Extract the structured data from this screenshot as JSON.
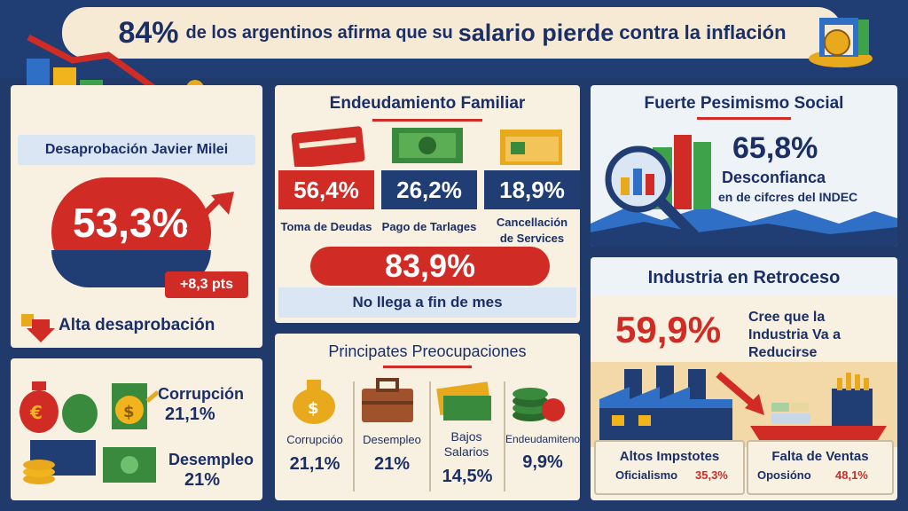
{
  "header": {
    "percent": "84%",
    "text_part1": "de los argentinos afirma que su",
    "text_part2": "salario pierde",
    "text_part3": "contra la inflación"
  },
  "milei": {
    "title": "Desaprobación Javier Milei",
    "value": "53,3%",
    "change": "+8,3 pts",
    "status": "Alta desaprobación"
  },
  "bottom_left": {
    "items": [
      {
        "label": "Corrupción",
        "value": "21,1%"
      },
      {
        "label": "Desempleo",
        "value": "21%"
      }
    ]
  },
  "debt": {
    "title": "Endeudamiento Familiar",
    "items": [
      {
        "value": "56,4%",
        "label": "Toma de Deudas"
      },
      {
        "value": "26,2%",
        "label": "Pago de Tarlages"
      },
      {
        "value": "18,9%",
        "label": "Cancellación de Services"
      }
    ],
    "highlight_value": "83,9%",
    "highlight_label": "No llega a fin de mes"
  },
  "concerns": {
    "title": "Principates Preocupaciones",
    "items": [
      {
        "label": "Corrupcióo",
        "value": "21,1%"
      },
      {
        "label": "Desempleo",
        "value": "21%"
      },
      {
        "label": "Bajos Salarios",
        "value": "14,5%"
      },
      {
        "label": "Endeudamiteno",
        "value": "9,9%"
      }
    ]
  },
  "pessimism": {
    "title": "Fuerte Pesimismo Social",
    "value": "65,8%",
    "line1": "Desconfianca",
    "line2": "en de cifcres del INDEC"
  },
  "industry": {
    "title": "Industria en Retroceso",
    "value": "59,9%",
    "text": "Cree que la Industria Va a Reducirse",
    "left_title": "Altos Impstotes",
    "left_label": "Oficialismo",
    "left_value": "35,3%",
    "right_title": "Falta de Ventas",
    "right_label": "Oposióno",
    "right_value": "48,1%"
  },
  "colors": {
    "navy": "#1b2f66",
    "red": "#d12b25",
    "cream": "#f8f1e2",
    "blue_bg": "#1f3a6b"
  }
}
